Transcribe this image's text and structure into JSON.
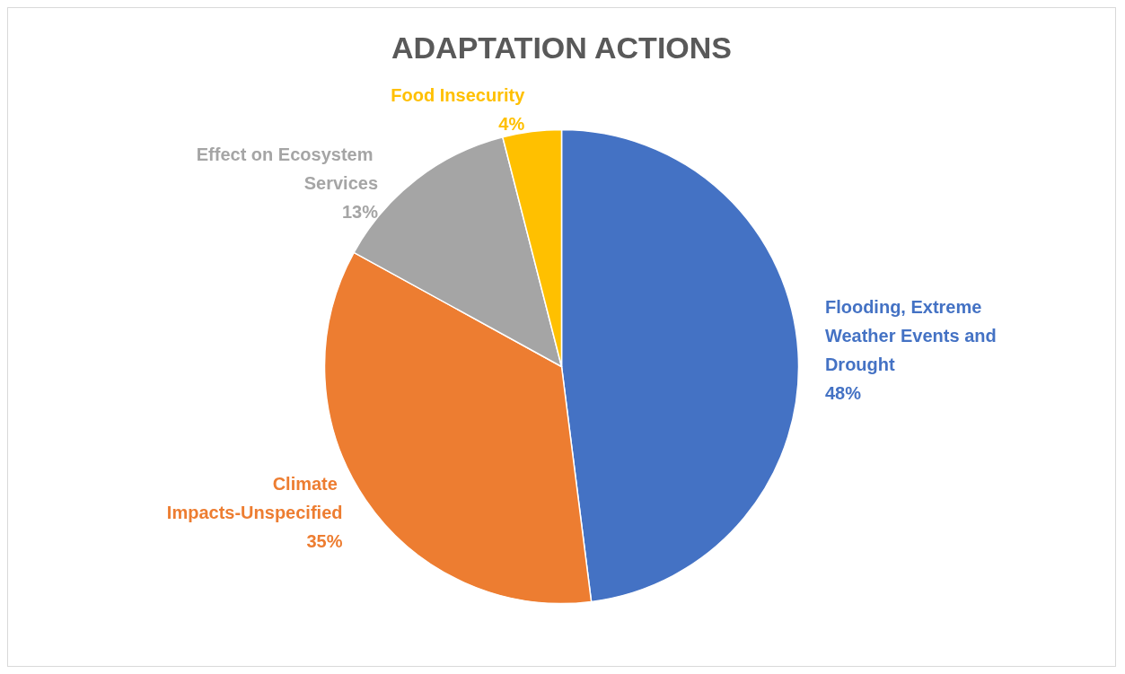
{
  "chart_data": {
    "type": "pie",
    "title": "ADAPTATION ACTIONS",
    "categories": [
      "Flooding, Extreme Weather Events and Drought",
      "Climate Impacts-Unspecified",
      "Effect on Ecosystem Services",
      "Food Insecurity"
    ],
    "values": [
      48,
      35,
      13,
      4
    ],
    "value_labels": [
      "48%",
      "35%",
      "13%",
      "4%"
    ],
    "colors": [
      "#4472c4",
      "#ed7d31",
      "#a5a5a5",
      "#ffc000"
    ]
  }
}
